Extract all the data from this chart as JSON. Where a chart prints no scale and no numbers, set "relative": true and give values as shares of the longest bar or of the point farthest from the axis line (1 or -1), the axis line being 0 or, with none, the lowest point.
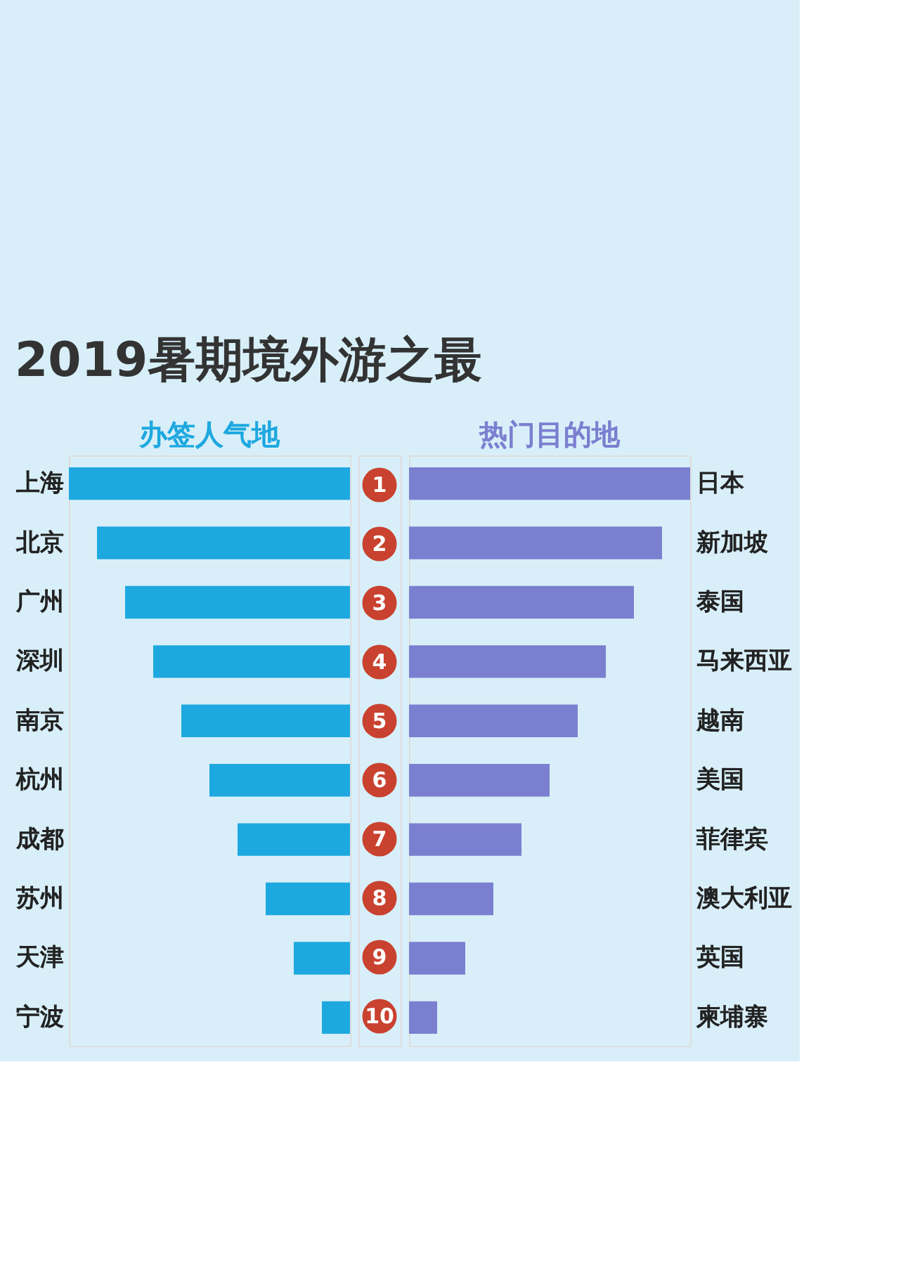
{
  "chart_data": [
    {
      "type": "bar",
      "orientation": "horizontal",
      "relative": true,
      "title": "2019暑期境外游之最",
      "subtitle": "办签人气地",
      "categories": [
        "上海",
        "北京",
        "广州",
        "深圳",
        "南京",
        "杭州",
        "成都",
        "苏州",
        "天津",
        "宁波"
      ],
      "values": [
        1,
        0.9,
        0.8,
        0.7,
        0.6,
        0.5,
        0.4,
        0.3,
        0.2,
        0.1
      ],
      "color": "#1ea8e0",
      "annotations": [
        "1",
        "2",
        "3",
        "4",
        "5",
        "6",
        "7",
        "8",
        "9",
        "10"
      ]
    },
    {
      "type": "bar",
      "orientation": "horizontal",
      "relative": true,
      "subtitle": "热门目的地",
      "categories": [
        "日本",
        "新加坡",
        "泰国",
        "马来西亚",
        "越南",
        "美国",
        "菲律宾",
        "澳大利亚",
        "英国",
        "柬埔寨"
      ],
      "values": [
        1,
        0.9,
        0.8,
        0.7,
        0.6,
        0.5,
        0.4,
        0.3,
        0.2,
        0.1
      ],
      "color": "#7b7fd0"
    }
  ]
}
